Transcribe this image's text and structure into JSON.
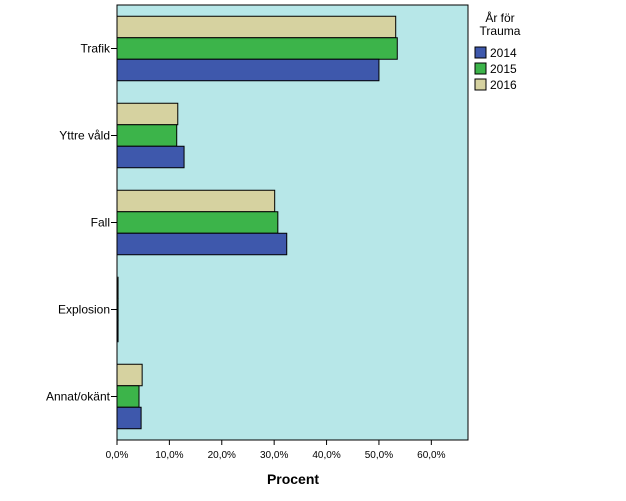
{
  "chart_data": {
    "type": "bar",
    "orientation": "horizontal",
    "categories": [
      "Trafik",
      "Yttre våld",
      "Fall",
      "Explosion",
      "Annat/okänt"
    ],
    "series": [
      {
        "name": "2014",
        "color": "#3e58ac",
        "values": [
          50.0,
          12.8,
          32.4,
          0.2,
          4.6
        ]
      },
      {
        "name": "2015",
        "color": "#3cb44a",
        "values": [
          53.5,
          11.4,
          30.7,
          0.2,
          4.2
        ]
      },
      {
        "name": "2016",
        "color": "#d6d2a0",
        "values": [
          53.2,
          11.6,
          30.1,
          0.2,
          4.8
        ]
      }
    ],
    "xlabel": "Procent",
    "xlim": [
      0,
      67
    ],
    "xticks": [
      0,
      10,
      20,
      30,
      40,
      50,
      60
    ],
    "xtick_labels": [
      "0,0%",
      "10,0%",
      "20,0%",
      "30,0%",
      "40,0%",
      "50,0%",
      "60,0%"
    ],
    "legend": {
      "title_lines": [
        "År för",
        "Trauma"
      ],
      "placement": "right"
    },
    "plot_background": "#b7e7e8",
    "grid": false
  }
}
